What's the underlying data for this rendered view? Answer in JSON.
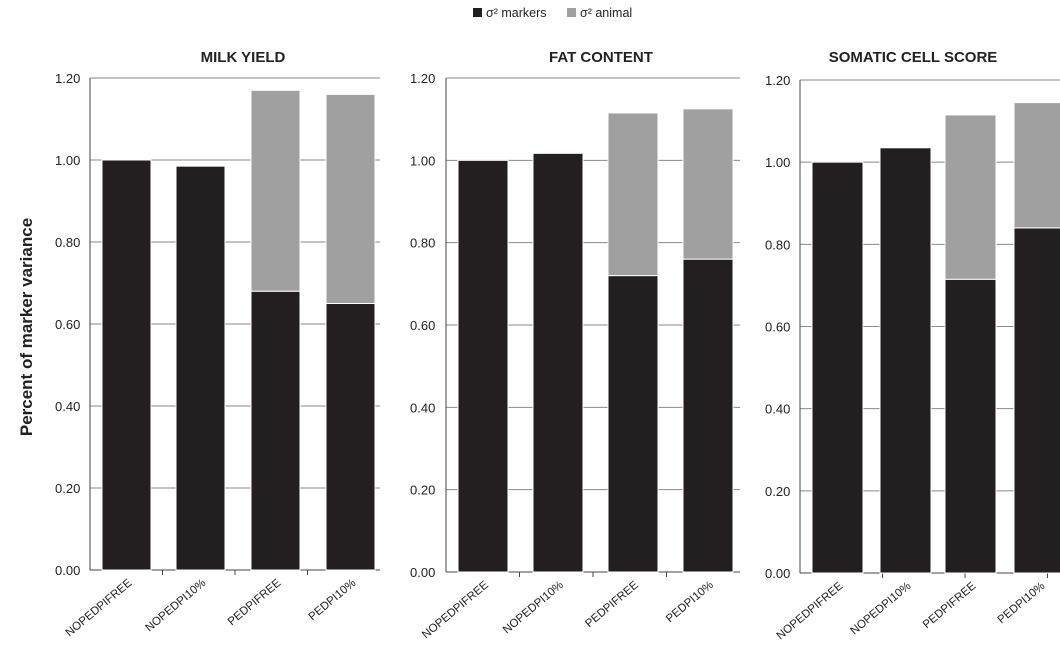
{
  "chart_data": {
    "type": "bar",
    "stacked": true,
    "ylabel": "Percent of marker variance",
    "ylim": [
      0,
      1.2
    ],
    "yticks": [
      "0.00",
      "0.20",
      "0.40",
      "0.60",
      "0.80",
      "1.00",
      "1.20"
    ],
    "grid": true,
    "legend": {
      "position": "top-center",
      "items": [
        {
          "name": "σ² markers",
          "color": "#231f20"
        },
        {
          "name": "σ² animal",
          "color": "#a0a0a0"
        }
      ]
    },
    "panels": [
      {
        "title": "MILK YIELD",
        "categories": [
          "NOPEDPIFREE",
          "NOPEDPI10%",
          "PEDPIFREE",
          "PEDPI10%"
        ],
        "series": [
          {
            "name": "σ² markers",
            "values": [
              1.0,
              0.985,
              0.68,
              0.65
            ]
          },
          {
            "name": "σ² animal",
            "values": [
              0.0,
              0.0,
              0.49,
              0.51
            ]
          }
        ]
      },
      {
        "title": "FAT CONTENT",
        "categories": [
          "NOPEDPIFREE",
          "NOPEDPI10%",
          "PEDPIFREE",
          "PEDPI10%"
        ],
        "series": [
          {
            "name": "σ² markers",
            "values": [
              1.0,
              1.017,
              0.72,
              0.76
            ]
          },
          {
            "name": "σ² animal",
            "values": [
              0.0,
              0.0,
              0.395,
              0.365
            ]
          }
        ]
      },
      {
        "title": "SOMATIC CELL SCORE",
        "categories": [
          "NOPEDPIFREE",
          "NOPEDPI10%",
          "PEDPIFREE",
          "PEDPI10%"
        ],
        "series": [
          {
            "name": "σ² markers",
            "values": [
              1.0,
              1.035,
              0.715,
              0.84
            ]
          },
          {
            "name": "σ² animal",
            "values": [
              0.0,
              0.0,
              0.4,
              0.305
            ]
          }
        ]
      }
    ]
  }
}
